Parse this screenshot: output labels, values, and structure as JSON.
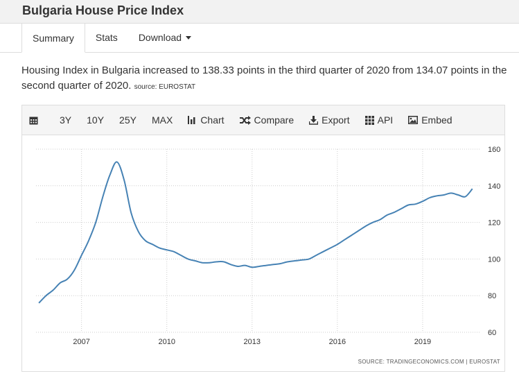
{
  "header": {
    "title": "Bulgaria House Price Index"
  },
  "tabs": [
    {
      "label": "Summary"
    },
    {
      "label": "Stats"
    },
    {
      "label": "Download"
    }
  ],
  "description": {
    "text": "Housing Index in Bulgaria increased to 138.33 points in the third quarter of 2020 from 134.07 points in the second quarter of 2020.",
    "source": "source: EUROSTAT"
  },
  "toolbar": {
    "calendar_icon": "calendar-icon",
    "items": [
      "3Y",
      "10Y",
      "25Y",
      "MAX"
    ],
    "chart_label": "Chart",
    "compare_label": "Compare",
    "export_label": "Export",
    "api_label": "API",
    "embed_label": "Embed"
  },
  "colors": {
    "line": "#4682b4",
    "grid": "#cccccc"
  },
  "chart_data": {
    "type": "line",
    "title": "",
    "xlabel": "",
    "ylabel": "",
    "ylim": [
      60,
      160
    ],
    "yticks": [
      60,
      80,
      100,
      120,
      140,
      160
    ],
    "xticks": [
      2007,
      2010,
      2013,
      2016,
      2019
    ],
    "xlim": [
      2005.4,
      2021.0
    ],
    "grid": "dotted",
    "legend": "none",
    "source_note": "SOURCE: TRADINGECONOMICS.COM | EUROSTAT",
    "x": [
      2005.5,
      2005.75,
      2006.0,
      2006.25,
      2006.5,
      2006.75,
      2007.0,
      2007.25,
      2007.5,
      2007.75,
      2008.0,
      2008.25,
      2008.5,
      2008.75,
      2009.0,
      2009.25,
      2009.5,
      2009.75,
      2010.0,
      2010.25,
      2010.5,
      2010.75,
      2011.0,
      2011.25,
      2011.5,
      2011.75,
      2012.0,
      2012.25,
      2012.5,
      2012.75,
      2013.0,
      2013.25,
      2013.5,
      2013.75,
      2014.0,
      2014.25,
      2014.5,
      2014.75,
      2015.0,
      2015.25,
      2015.5,
      2015.75,
      2016.0,
      2016.25,
      2016.5,
      2016.75,
      2017.0,
      2017.25,
      2017.5,
      2017.75,
      2018.0,
      2018.25,
      2018.5,
      2018.75,
      2019.0,
      2019.25,
      2019.5,
      2019.75,
      2020.0,
      2020.25,
      2020.5,
      2020.75
    ],
    "values": [
      76,
      80,
      83,
      87,
      89,
      94,
      102,
      110,
      120,
      134,
      146,
      153,
      143,
      125,
      115,
      110,
      108,
      106,
      105,
      104,
      102,
      100,
      99,
      98,
      98,
      98.5,
      98.5,
      97,
      96,
      96.5,
      95.5,
      96,
      96.5,
      97,
      97.5,
      98.5,
      99,
      99.5,
      100,
      102,
      104,
      106,
      108,
      110.5,
      113,
      115.5,
      118,
      120,
      121.5,
      124,
      125.5,
      127.5,
      129.5,
      130,
      131.5,
      133.5,
      134.5,
      135,
      136,
      135,
      134.07,
      138.33
    ]
  }
}
